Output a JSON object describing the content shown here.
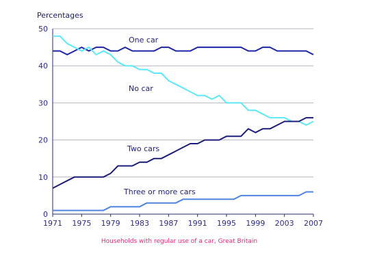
{
  "chart_data": {
    "type": "line",
    "ylabel": "Percentages",
    "caption": "Households with regular use of a car, Great Britain",
    "ylim": [
      0,
      50
    ],
    "yticks": [
      0,
      10,
      20,
      30,
      40,
      50
    ],
    "xlim": [
      1971,
      2007
    ],
    "xticks": [
      1971,
      1975,
      1979,
      1983,
      1987,
      1991,
      1995,
      1999,
      2003,
      2007
    ],
    "grid": true,
    "x": [
      1971,
      1972,
      1973,
      1974,
      1975,
      1976,
      1977,
      1978,
      1979,
      1980,
      1981,
      1982,
      1983,
      1984,
      1985,
      1986,
      1987,
      1988,
      1989,
      1990,
      1991,
      1992,
      1993,
      1994,
      1995,
      1996,
      1997,
      1998,
      1999,
      2000,
      2001,
      2002,
      2003,
      2004,
      2005,
      2006,
      2007
    ],
    "series": [
      {
        "name": "One car",
        "color": "#1c23a6",
        "values": [
          44,
          44,
          43,
          44,
          45,
          44,
          45,
          45,
          44,
          44,
          45,
          44,
          44,
          44,
          44,
          45,
          45,
          44,
          44,
          44,
          45,
          45,
          45,
          45,
          45,
          45,
          45,
          44,
          44,
          45,
          45,
          44,
          44,
          44,
          44,
          44,
          43
        ]
      },
      {
        "name": "No car",
        "color": "#5ce8f8",
        "values": [
          48,
          48,
          46,
          45,
          44,
          45,
          43,
          44,
          43,
          41,
          40,
          40,
          39,
          39,
          38,
          38,
          36,
          35,
          34,
          33,
          32,
          32,
          31,
          32,
          30,
          30,
          30,
          28,
          28,
          27,
          26,
          26,
          26,
          25,
          25,
          24,
          25
        ]
      },
      {
        "name": "Two cars",
        "color": "#1c1c7a",
        "values": [
          7,
          8,
          9,
          10,
          10,
          10,
          10,
          10,
          11,
          13,
          13,
          13,
          14,
          14,
          15,
          15,
          16,
          17,
          18,
          19,
          19,
          20,
          20,
          20,
          21,
          21,
          21,
          23,
          22,
          23,
          23,
          24,
          25,
          25,
          25,
          26,
          26
        ]
      },
      {
        "name": "Three or more cars",
        "color": "#4f84e0",
        "values": [
          1,
          1,
          1,
          1,
          1,
          1,
          1,
          1,
          2,
          2,
          2,
          2,
          2,
          3,
          3,
          3,
          3,
          3,
          4,
          4,
          4,
          4,
          4,
          4,
          4,
          4,
          5,
          5,
          5,
          5,
          5,
          5,
          5,
          5,
          5,
          6,
          6
        ]
      }
    ]
  }
}
